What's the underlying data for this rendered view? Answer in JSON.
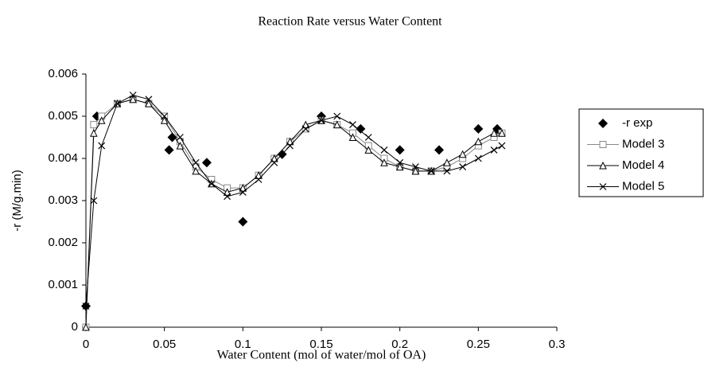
{
  "chart_data": {
    "type": "scatter",
    "title": "Reaction Rate versus Water Content",
    "x_label": "Water Content (mol of water/mol of OA)",
    "y_label": "-r (M/g.min)",
    "xlim": [
      0,
      0.3
    ],
    "xticks": [
      0,
      0.05,
      0.1,
      0.15,
      0.2,
      0.25,
      0.3
    ],
    "ylim": [
      0,
      0.006
    ],
    "yticks": [
      0,
      0.001,
      0.002,
      0.003,
      0.004,
      0.005,
      0.006
    ],
    "grid": false,
    "legend": "right",
    "series": [
      {
        "name": "-r exp",
        "color": "#000000",
        "marker": "diamond",
        "line": false,
        "x": [
          0,
          0.007,
          0.053,
          0.055,
          0.077,
          0.1,
          0.125,
          0.15,
          0.175,
          0.2,
          0.225,
          0.25,
          0.262
        ],
        "values": [
          0.0005,
          0.005,
          0.0042,
          0.0045,
          0.0039,
          0.0025,
          0.0041,
          0.005,
          0.0047,
          0.0042,
          0.0042,
          0.0047,
          0.0047
        ]
      },
      {
        "name": "Model 3",
        "color": "#888888",
        "marker": "square",
        "line": true,
        "x": [
          0,
          0.005,
          0.01,
          0.02,
          0.03,
          0.04,
          0.05,
          0.06,
          0.07,
          0.08,
          0.09,
          0.1,
          0.11,
          0.12,
          0.13,
          0.14,
          0.15,
          0.16,
          0.17,
          0.18,
          0.19,
          0.2,
          0.21,
          0.22,
          0.23,
          0.24,
          0.25,
          0.26,
          0.265
        ],
        "values": [
          0,
          0.0048,
          0.005,
          0.0053,
          0.0054,
          0.0053,
          0.005,
          0.0044,
          0.0038,
          0.0035,
          0.0033,
          0.0033,
          0.0036,
          0.004,
          0.0044,
          0.0047,
          0.0049,
          0.0048,
          0.0046,
          0.0043,
          0.004,
          0.0038,
          0.0037,
          0.0037,
          0.0038,
          0.004,
          0.0043,
          0.0045,
          0.0046
        ]
      },
      {
        "name": "Model 4",
        "color": "#000000",
        "marker": "triangle",
        "line": true,
        "x": [
          0,
          0.005,
          0.01,
          0.02,
          0.03,
          0.04,
          0.05,
          0.06,
          0.07,
          0.08,
          0.09,
          0.1,
          0.11,
          0.12,
          0.13,
          0.14,
          0.15,
          0.16,
          0.17,
          0.18,
          0.19,
          0.2,
          0.21,
          0.22,
          0.23,
          0.24,
          0.25,
          0.26,
          0.265
        ],
        "values": [
          0,
          0.0046,
          0.0049,
          0.0053,
          0.0054,
          0.0053,
          0.0049,
          0.0043,
          0.0037,
          0.0034,
          0.0032,
          0.0033,
          0.0036,
          0.004,
          0.0044,
          0.0048,
          0.0049,
          0.0048,
          0.0045,
          0.0042,
          0.0039,
          0.0038,
          0.0037,
          0.0037,
          0.0039,
          0.0041,
          0.0044,
          0.0046,
          0.0046
        ]
      },
      {
        "name": "Model 5",
        "color": "#000000",
        "marker": "x",
        "line": true,
        "x": [
          0,
          0.005,
          0.01,
          0.02,
          0.03,
          0.04,
          0.05,
          0.06,
          0.07,
          0.08,
          0.09,
          0.1,
          0.11,
          0.12,
          0.13,
          0.14,
          0.15,
          0.16,
          0.17,
          0.18,
          0.19,
          0.2,
          0.21,
          0.22,
          0.23,
          0.24,
          0.25,
          0.26,
          0.265
        ],
        "values": [
          0.0005,
          0.003,
          0.0043,
          0.0053,
          0.0055,
          0.0054,
          0.005,
          0.0045,
          0.0039,
          0.0034,
          0.0031,
          0.0032,
          0.0035,
          0.0039,
          0.0043,
          0.0047,
          0.0049,
          0.005,
          0.0048,
          0.0045,
          0.0042,
          0.0039,
          0.0038,
          0.0037,
          0.0037,
          0.0038,
          0.004,
          0.0042,
          0.0043
        ]
      }
    ]
  }
}
